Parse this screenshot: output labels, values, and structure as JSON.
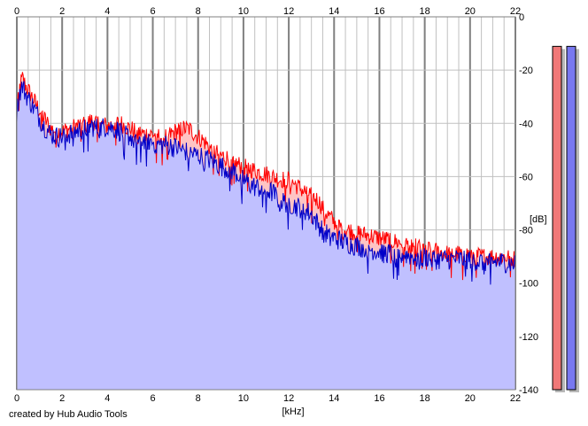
{
  "credit": "created by Hub Audio Tools",
  "colors": {
    "background": "#ffffff",
    "plot_background": "#ffffff",
    "grid": "#c0c0c0",
    "grid_major": "#808080",
    "left_channel": "#ff0000",
    "right_channel": "#0000c8",
    "left_fill": "#ffc4c4",
    "right_fill": "#c0c0ff",
    "left_meter": "#f07878",
    "right_meter": "#7878f0",
    "meter_shadow": "#b8b8b8"
  },
  "chart_data": {
    "type": "area",
    "title": "",
    "xlabel": "[kHz]",
    "ylabel": "[dB]",
    "xlim": [
      0,
      22
    ],
    "ylim": [
      -140,
      0
    ],
    "x_ticks": [
      "0",
      "2",
      "4",
      "6",
      "8",
      "10",
      "12",
      "14",
      "16",
      "18",
      "20",
      "22"
    ],
    "y_ticks": [
      "0",
      "-20",
      "-40",
      "-60",
      "-80",
      "-100",
      "-120",
      "-140"
    ],
    "grid": true,
    "legend": "none",
    "series": [
      {
        "color": "#ff0000",
        "x": [
          0,
          0.1,
          0.25,
          0.4,
          0.6,
          0.8,
          1,
          1.2,
          1.5,
          1.8,
          2,
          2.3,
          2.6,
          3,
          3.3,
          3.6,
          4,
          4.3,
          4.6,
          5,
          5.3,
          5.6,
          6,
          6.3,
          6.6,
          7,
          7.3,
          7.6,
          8,
          8.3,
          8.6,
          9,
          9.3,
          9.6,
          10,
          10.3,
          10.6,
          11,
          11.3,
          11.6,
          12,
          12.3,
          12.6,
          13,
          13.3,
          13.6,
          14,
          14.3,
          14.6,
          15,
          15.5,
          16,
          16.5,
          17,
          17.5,
          18,
          18.5,
          19,
          19.5,
          20,
          20.5,
          21,
          21.5,
          22
        ],
        "y": [
          -33,
          -27,
          -23,
          -26,
          -29,
          -32,
          -35,
          -38,
          -42,
          -43,
          -43,
          -42,
          -41,
          -40,
          -39,
          -40,
          -41,
          -40,
          -40,
          -42,
          -43,
          -44,
          -44,
          -45,
          -45,
          -43,
          -42,
          -42,
          -45,
          -47,
          -50,
          -52,
          -53,
          -55,
          -56,
          -57,
          -58,
          -59,
          -60,
          -61,
          -61,
          -63,
          -65,
          -67,
          -69,
          -73,
          -77,
          -79,
          -80,
          -81,
          -82,
          -83,
          -84,
          -85,
          -86,
          -87,
          -88,
          -89,
          -89,
          -89,
          -90,
          -90,
          -90,
          -91
        ]
      },
      {
        "color": "#0000c8",
        "x": [
          0,
          0.1,
          0.25,
          0.4,
          0.6,
          0.8,
          1,
          1.2,
          1.5,
          1.8,
          2,
          2.3,
          2.6,
          3,
          3.3,
          3.6,
          4,
          4.3,
          4.6,
          5,
          5.3,
          5.6,
          6,
          6.3,
          6.6,
          7,
          7.3,
          7.6,
          8,
          8.3,
          8.6,
          9,
          9.3,
          9.6,
          10,
          10.3,
          10.6,
          11,
          11.3,
          11.6,
          12,
          12.3,
          12.6,
          13,
          13.3,
          13.6,
          14,
          14.3,
          14.6,
          15,
          15.5,
          16,
          16.5,
          17,
          17.5,
          18,
          18.5,
          19,
          19.5,
          20,
          20.5,
          21,
          21.5,
          22
        ],
        "y": [
          -36,
          -29,
          -26,
          -29,
          -32,
          -35,
          -38,
          -41,
          -44,
          -45,
          -45,
          -44,
          -43,
          -42,
          -41,
          -42,
          -41,
          -42,
          -43,
          -45,
          -46,
          -46,
          -47,
          -48,
          -48,
          -49,
          -50,
          -51,
          -52,
          -53,
          -54,
          -56,
          -57,
          -58,
          -61,
          -63,
          -64,
          -65,
          -66,
          -69,
          -70,
          -71,
          -72,
          -74,
          -78,
          -81,
          -83,
          -84,
          -85,
          -86,
          -87,
          -88,
          -89,
          -89,
          -90,
          -90,
          -91,
          -91,
          -91,
          -91,
          -92,
          -92,
          -92,
          -93
        ]
      }
    ]
  },
  "meters": [
    {
      "channel": "left",
      "level_db": -6
    },
    {
      "channel": "right",
      "level_db": -6
    }
  ]
}
